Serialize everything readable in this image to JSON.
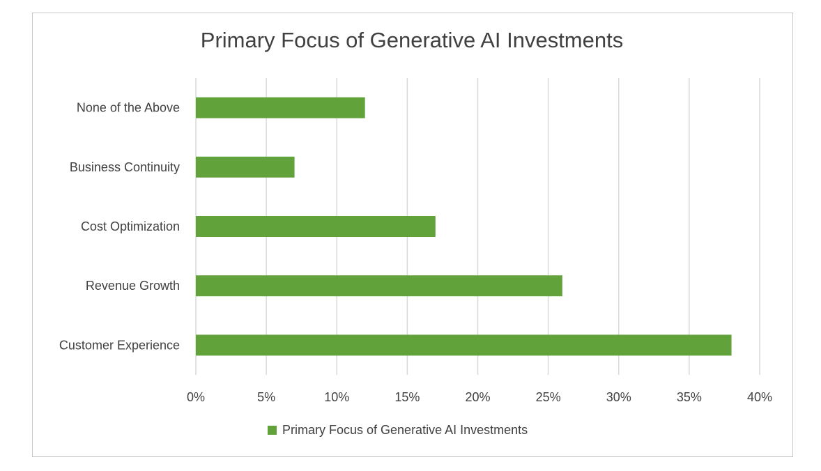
{
  "chart_data": {
    "type": "bar",
    "orientation": "horizontal",
    "title": "Primary Focus of Generative AI Investments",
    "categories": [
      "None of the Above",
      "Business Continuity",
      "Cost Optimization",
      "Revenue Growth",
      "Customer Experience"
    ],
    "series": [
      {
        "name": "Primary Focus of Generative AI Investments",
        "values": [
          12,
          7,
          17,
          26,
          38
        ],
        "color": "#62a23a"
      }
    ],
    "xlim": [
      0,
      40
    ],
    "xticks": [
      0,
      5,
      10,
      15,
      20,
      25,
      30,
      35,
      40
    ],
    "tick_suffix": "%",
    "grid": "vertical",
    "gridline_color": "#d9d9d9",
    "legend_position": "bottom"
  }
}
